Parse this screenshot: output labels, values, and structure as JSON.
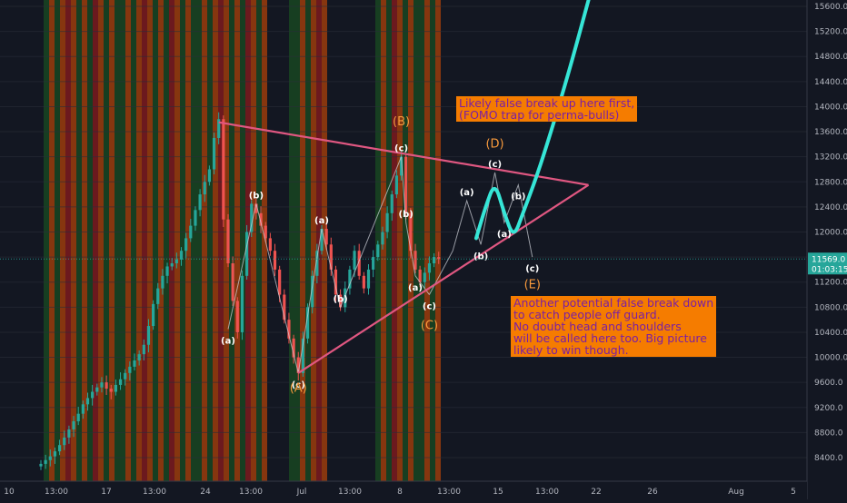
{
  "chart_data": {
    "type": "line",
    "title": "",
    "xlabel": "",
    "ylabel": "",
    "ylim": [
      8200,
      15700
    ],
    "yaxis_ticks": [
      8400,
      8800,
      9200,
      9600,
      10000,
      10400,
      10800,
      11200,
      11600,
      12000,
      12400,
      12800,
      13200,
      13600,
      14000,
      14400,
      14800,
      15200,
      15600
    ],
    "xaxis_labels": [
      "10",
      "13:00",
      "17",
      "13:00",
      "24",
      "13:00",
      "Jul",
      "13:00",
      "8",
      "13:00",
      "15",
      "13:00",
      "22",
      "26",
      "Aug",
      "5"
    ],
    "last_price": {
      "value": 11569.0,
      "price_label": "11569.0",
      "timer_label": "01:03:15"
    },
    "price_series_close": [
      8300,
      8360,
      8420,
      8500,
      8600,
      8720,
      8850,
      8980,
      9100,
      9250,
      9350,
      9450,
      9520,
      9600,
      9500,
      9450,
      9560,
      9650,
      9750,
      9850,
      9950,
      10050,
      10200,
      10500,
      10850,
      11100,
      11300,
      11450,
      11500,
      11560,
      11700,
      11900,
      12100,
      12350,
      12600,
      12800,
      13000,
      13500,
      13800,
      12200,
      11500,
      10900,
      10400,
      11300,
      12000,
      12450,
      12300,
      12100,
      11900,
      11700,
      11400,
      11000,
      10600,
      10300,
      10000,
      9750,
      10300,
      10800,
      11300,
      11700,
      12050,
      11800,
      11400,
      11000,
      10800,
      11100,
      11400,
      11700,
      11300,
      11100,
      11400,
      11600,
      11800,
      12000,
      12300,
      12600,
      12900,
      13200,
      12300,
      11700,
      11400,
      11200,
      11350,
      11500,
      11600,
      11569
    ],
    "candle_open_index": 0,
    "wave_path": [
      {
        "label": "(a)",
        "i": 40,
        "y": 10450
      },
      {
        "label": "(b)",
        "i": 46,
        "y": 12450
      },
      {
        "label": "(c)",
        "i": 55,
        "y": 9750
      },
      {
        "label": "(a)",
        "i": 60,
        "y": 12050
      },
      {
        "label": "(b)",
        "i": 64,
        "y": 10800
      },
      {
        "label": "(c)",
        "i": 77,
        "y": 13200
      },
      {
        "label": "(a)",
        "i": 80,
        "y": 11300
      },
      {
        "label": "(b)",
        "i": 78,
        "y": 12150
      },
      {
        "label": "(c)",
        "i": 83,
        "y": 11000
      }
    ],
    "projection_path": {
      "points": [
        [
          83,
          11000
        ],
        [
          88,
          11700
        ],
        [
          91,
          12500
        ],
        [
          94,
          11800
        ],
        [
          97,
          12950
        ],
        [
          99,
          12150
        ],
        [
          102,
          12750
        ],
        [
          105,
          11600
        ]
      ],
      "labels": [
        {
          "label": "(a)",
          "i": 91,
          "y": 12500
        },
        {
          "label": "(b)",
          "i": 94,
          "y": 11800
        },
        {
          "label": "(c)",
          "i": 97,
          "y": 12950
        },
        {
          "label": "(a)",
          "i": 99,
          "y": 12150
        },
        {
          "label": "(b)",
          "i": 102,
          "y": 12750
        },
        {
          "label": "(c)",
          "i": 105,
          "y": 11600
        }
      ]
    },
    "cyan_projection": [
      [
        93,
        11900
      ],
      [
        95,
        12400
      ],
      [
        97,
        12800
      ],
      [
        99,
        12300
      ],
      [
        101,
        11900
      ],
      [
        103,
        12300
      ],
      [
        106,
        12900
      ],
      [
        109,
        13600
      ],
      [
        113,
        14600
      ],
      [
        117,
        15700
      ]
    ],
    "triangle_upper": [
      [
        38,
        13750
      ],
      [
        117,
        12750
      ]
    ],
    "triangle_lower": [
      [
        55,
        9750
      ],
      [
        117,
        12750
      ]
    ],
    "big_wave_labels": [
      {
        "label": "(A)",
        "i": 55,
        "y": 9450
      },
      {
        "label": "(B)",
        "i": 77,
        "y": 13700
      },
      {
        "label": "(C)",
        "i": 83,
        "y": 10450
      },
      {
        "label": "(D)",
        "i": 97,
        "y": 13350
      },
      {
        "label": "(E)",
        "i": 105,
        "y": 11100
      }
    ],
    "annotations": [
      "Likely false break up here first,\n(FOMO trap for perma-bulls)",
      "Another potential false break down\nto catch people off guard.\nNo doubt head and shoulders\nwill be called here too. Big picture\nlikely to win though."
    ],
    "colors": {
      "background": "#131722",
      "up": "#26a69a",
      "down": "#ef5350",
      "triangle": "#e05781",
      "cyan": "#36e6d7",
      "wave_label": "#ffffff",
      "big_label": "#f89a3c",
      "note_bg": "#f57c00",
      "note_text": "#7b1fa2",
      "band_green": "#1b5e20",
      "band_orange": "#e65100",
      "band_red": "#b71c1c"
    },
    "band_pattern": [
      "green",
      "orange",
      "green",
      "orange",
      "red",
      "orange",
      "green",
      "orange",
      "green",
      "red",
      "orange",
      "green",
      "orange",
      "green"
    ]
  }
}
